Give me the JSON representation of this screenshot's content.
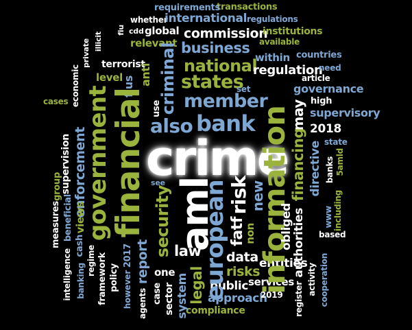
{
  "words": {
    "crime": "crime",
    "financial": "financial",
    "aml": "aml",
    "information": "information",
    "government": "government",
    "bank": "bank",
    "european": "european",
    "member": "member",
    "national": "national",
    "states": "states",
    "criminal": "criminal",
    "security": "security",
    "also": "also",
    "risk": "risk",
    "fatf": "fatf",
    "business": "business",
    "commission": "commission",
    "international": "international",
    "regulation": "regulation",
    "governance": "governance",
    "supervisory": "supervisory",
    "financing": "financing",
    "directive": "directive",
    "obliged": "obliged",
    "authorities": "authorities",
    "enforcement": "enforcement",
    "report": "report",
    "law": "law",
    "data": "data",
    "risks": "risks",
    "legal": "legal",
    "entities": "entities",
    "public": "public",
    "services": "services",
    "approach": "approach",
    "compliance": "compliance",
    "system": "system",
    "sector": "sector",
    "one": "one",
    "case": "case",
    "policy": "policy",
    "framework": "framework",
    "banking": "banking",
    "agents": "agents",
    "however": "however",
    "y2017": "2017",
    "y2018": "2018",
    "y2019": "2019",
    "regime": "regime",
    "intelligence": "intelligence",
    "cash": "cash",
    "views": "views",
    "measures": "measures",
    "beneficial": "beneficial",
    "group": "group",
    "supervision": "supervision",
    "cases": "cases",
    "economic": "economic",
    "terrorist": "terrorist",
    "level": "level",
    "fius": "fius",
    "anti": "anti",
    "relevant": "relevant",
    "global": "global",
    "cdd": "cdd",
    "fiu": "fiu",
    "private": "private",
    "illicit": "illicit",
    "whether": "whether",
    "requirements": "requirements",
    "transactions": "transactions",
    "regulations": "regulations",
    "institutions": "institutions",
    "available": "available",
    "countries": "countries",
    "need": "need",
    "article": "article",
    "within": "within",
    "set": "set",
    "high": "high",
    "may": "may",
    "use": "use",
    "state": "state",
    "banks": "banks",
    "fiveamld": "5amld",
    "www": "www",
    "including": "including",
    "based": "based",
    "non": "non",
    "new": "new",
    "see": "see",
    "register": "register",
    "activity": "activity",
    "cooperation": "cooperation"
  }
}
